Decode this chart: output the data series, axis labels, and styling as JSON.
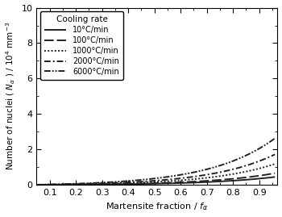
{
  "title": "",
  "xlabel": "Martensite fraction / $f_{\\alpha}$",
  "ylabel": "Number of nuclei ( $N_{\\alpha}$ ) / 10$^{4}$ mm$^{-3}$",
  "xlim": [
    0.05,
    0.97
  ],
  "ylim": [
    0,
    10
  ],
  "xticks": [
    0.1,
    0.2,
    0.3,
    0.4,
    0.5,
    0.6,
    0.7,
    0.8,
    0.9
  ],
  "yticks": [
    0,
    2,
    4,
    6,
    8,
    10
  ],
  "curves": [
    {
      "label": "10°C/min",
      "a": 0.012,
      "b": 3.8,
      "c": 0.5
    },
    {
      "label": "100°C/min",
      "a": 0.016,
      "b": 3.9,
      "c": 0.5
    },
    {
      "label": "1000°C/min",
      "a": 0.026,
      "b": 4.0,
      "c": 0.5
    },
    {
      "label": "2000°C/min",
      "a": 0.036,
      "b": 4.05,
      "c": 0.5
    },
    {
      "label": "6000°C/min",
      "a": 0.055,
      "b": 4.05,
      "c": 0.5
    }
  ],
  "linestyles": [
    [
      0,
      []
    ],
    [
      0,
      [
        6,
        2
      ]
    ],
    [
      0,
      [
        1,
        1.2
      ]
    ],
    [
      0,
      [
        4,
        1.5,
        1,
        1.5
      ]
    ],
    [
      0,
      [
        4,
        1,
        1,
        1,
        1,
        1
      ]
    ]
  ],
  "linewidths": [
    1.4,
    1.4,
    1.4,
    1.4,
    1.4
  ],
  "color": "#222222",
  "legend_loc": "upper left",
  "legend_title": "Cooling rate",
  "background_color": "#ffffff",
  "figure_facecolor": "#ffffff"
}
